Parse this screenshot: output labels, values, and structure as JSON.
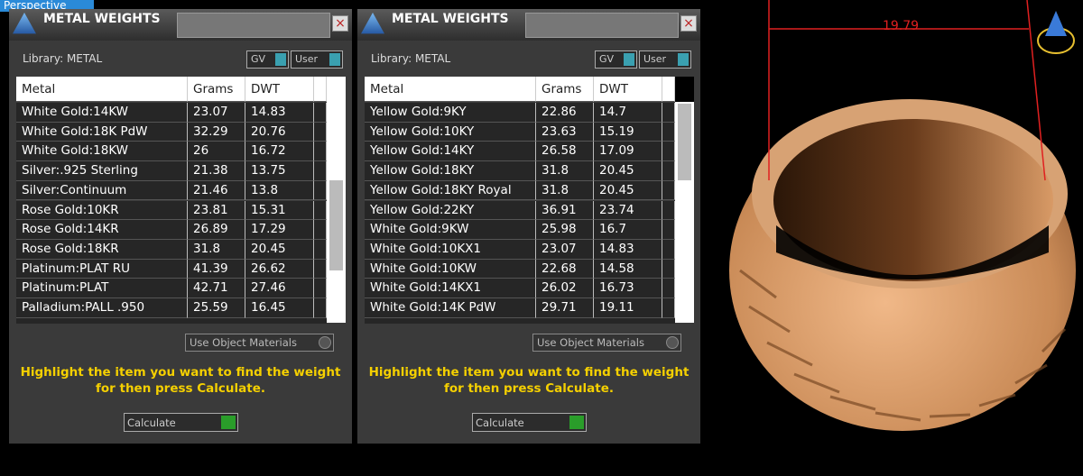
{
  "viewport": {
    "label": "Perspective",
    "dimension": "19.79"
  },
  "panels": [
    {
      "title": "METAL WEIGHTS",
      "library": "Library: METAL",
      "toggles": [
        "GV",
        "User"
      ],
      "columns": [
        "Metal",
        "Grams",
        "DWT"
      ],
      "rows": [
        [
          "White Gold:14KW",
          23.07,
          14.83
        ],
        [
          "White Gold:18K PdW",
          32.29,
          20.76
        ],
        [
          "White Gold:18KW",
          26,
          16.72
        ],
        [
          "Silver:.925 Sterling",
          21.38,
          13.75
        ],
        [
          "Silver:Continuum",
          21.46,
          13.8
        ],
        [
          "Rose Gold:10KR",
          23.81,
          15.31
        ],
        [
          "Rose Gold:14KR",
          26.89,
          17.29
        ],
        [
          "Rose Gold:18KR",
          31.8,
          20.45
        ],
        [
          "Platinum:PLAT RU",
          41.39,
          26.62
        ],
        [
          "Platinum:PLAT",
          42.71,
          27.46
        ],
        [
          "Palladium:PALL .950",
          25.59,
          16.45
        ]
      ],
      "materials": "Use Object Materials",
      "hint": [
        "Highlight the item you want to find the weight",
        "for then press Calculate."
      ],
      "action": "Calculate"
    },
    {
      "title": "METAL WEIGHTS",
      "library": "Library: METAL",
      "toggles": [
        "GV",
        "User"
      ],
      "columns": [
        "Metal",
        "Grams",
        "DWT"
      ],
      "rows": [
        [
          "Yellow Gold:9KY",
          22.86,
          14.7
        ],
        [
          "Yellow Gold:10KY",
          23.63,
          15.19
        ],
        [
          "Yellow Gold:14KY",
          26.58,
          17.09
        ],
        [
          "Yellow Gold:18KY",
          31.8,
          20.45
        ],
        [
          "Yellow Gold:18KY Royal",
          31.8,
          20.45
        ],
        [
          "Yellow Gold:22KY",
          36.91,
          23.74
        ],
        [
          "White Gold:9KW",
          25.98,
          16.7
        ],
        [
          "White Gold:10KX1",
          23.07,
          14.83
        ],
        [
          "White Gold:10KW",
          22.68,
          14.58
        ],
        [
          "White Gold:14KX1",
          26.02,
          16.73
        ],
        [
          "White Gold:14K PdW",
          29.71,
          19.11
        ]
      ],
      "materials": "Use Object Materials",
      "hint": [
        "Highlight the item you want to find the weight",
        "for then press Calculate."
      ],
      "action": "Calculate"
    }
  ]
}
